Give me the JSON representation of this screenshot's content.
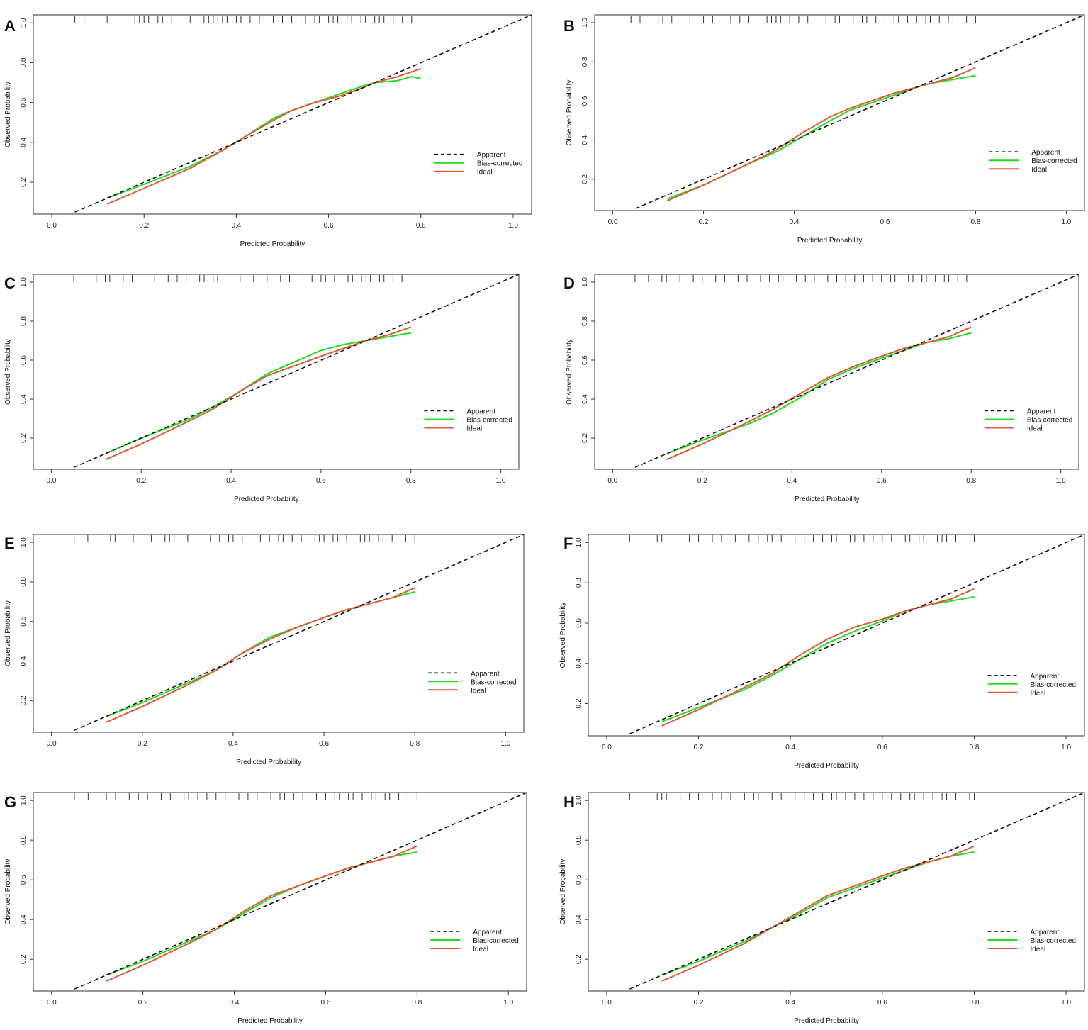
{
  "colors": {
    "apparent": "#111111",
    "bias_corrected": "#22dd22",
    "ideal": "#e05a3a",
    "frame": "#333333"
  },
  "chart_data": [
    {
      "panel": "A",
      "type": "line",
      "xlabel": "Predicted Probability",
      "ylabel": "Observed Probability",
      "xticks": [
        "0.0",
        "0.2",
        "0.4",
        "0.6",
        "0.8",
        "1.0"
      ],
      "yticks": [
        "0.2",
        "0.4",
        "0.6",
        "0.8",
        "1.0"
      ],
      "xlim": [
        -0.04,
        1.04
      ],
      "ylim": [
        0.04,
        1.04
      ],
      "legend": [
        "Apparent",
        "Bias-corrected",
        "Ideal"
      ],
      "rug": [
        0.05,
        0.07,
        0.12,
        0.18,
        0.19,
        0.2,
        0.21,
        0.23,
        0.24,
        0.26,
        0.3,
        0.33,
        0.34,
        0.35,
        0.36,
        0.37,
        0.38,
        0.4,
        0.41,
        0.43,
        0.45,
        0.46,
        0.48,
        0.5,
        0.52,
        0.54,
        0.55,
        0.57,
        0.58,
        0.6,
        0.61,
        0.62,
        0.64,
        0.65,
        0.67,
        0.68,
        0.7,
        0.71,
        0.72,
        0.74,
        0.76,
        0.78
      ],
      "series": [
        {
          "name": "Apparent",
          "x": [
            0.05,
            1.04
          ],
          "y": [
            0.05,
            1.04
          ]
        },
        {
          "name": "Bias-corrected",
          "x": [
            0.12,
            0.2,
            0.3,
            0.37,
            0.42,
            0.48,
            0.52,
            0.57,
            0.62,
            0.67,
            0.7,
            0.75,
            0.78,
            0.8
          ],
          "y": [
            0.12,
            0.19,
            0.28,
            0.36,
            0.43,
            0.52,
            0.56,
            0.6,
            0.64,
            0.68,
            0.7,
            0.71,
            0.73,
            0.72
          ]
        },
        {
          "name": "Ideal",
          "x": [
            0.12,
            0.2,
            0.3,
            0.37,
            0.42,
            0.48,
            0.52,
            0.57,
            0.62,
            0.67,
            0.7,
            0.75,
            0.8
          ],
          "y": [
            0.09,
            0.17,
            0.27,
            0.36,
            0.43,
            0.51,
            0.56,
            0.6,
            0.63,
            0.67,
            0.7,
            0.73,
            0.77
          ]
        }
      ]
    },
    {
      "panel": "B",
      "type": "line",
      "xlabel": "Predicted Probability",
      "ylabel": "Observed Probability",
      "xticks": [
        "0.0",
        "0.2",
        "0.4",
        "0.6",
        "0.8",
        "1.0"
      ],
      "yticks": [
        "0.2",
        "0.4",
        "0.6",
        "0.8",
        "1.0"
      ],
      "xlim": [
        -0.04,
        1.04
      ],
      "ylim": [
        0.04,
        1.04
      ],
      "legend": [
        "Apparent",
        "Bias-corrected",
        "Ideal"
      ],
      "rug": [
        0.04,
        0.06,
        0.1,
        0.11,
        0.13,
        0.17,
        0.2,
        0.22,
        0.26,
        0.28,
        0.3,
        0.34,
        0.35,
        0.36,
        0.37,
        0.39,
        0.41,
        0.43,
        0.45,
        0.47,
        0.49,
        0.5,
        0.53,
        0.55,
        0.56,
        0.58,
        0.6,
        0.62,
        0.63,
        0.65,
        0.67,
        0.69,
        0.7,
        0.72,
        0.74,
        0.75,
        0.78,
        0.8
      ],
      "series": [
        {
          "name": "Apparent",
          "x": [
            0.05,
            1.04
          ],
          "y": [
            0.05,
            1.04
          ]
        },
        {
          "name": "Bias-corrected",
          "x": [
            0.12,
            0.2,
            0.3,
            0.36,
            0.42,
            0.48,
            0.52,
            0.57,
            0.62,
            0.67,
            0.7,
            0.75,
            0.8
          ],
          "y": [
            0.1,
            0.17,
            0.28,
            0.34,
            0.42,
            0.5,
            0.55,
            0.59,
            0.63,
            0.67,
            0.69,
            0.71,
            0.73
          ]
        },
        {
          "name": "Ideal",
          "x": [
            0.12,
            0.2,
            0.3,
            0.36,
            0.42,
            0.48,
            0.52,
            0.57,
            0.62,
            0.67,
            0.7,
            0.75,
            0.8
          ],
          "y": [
            0.09,
            0.17,
            0.28,
            0.35,
            0.44,
            0.52,
            0.56,
            0.6,
            0.64,
            0.67,
            0.69,
            0.72,
            0.77
          ]
        }
      ]
    },
    {
      "panel": "C",
      "type": "line",
      "xlabel": "Predicted Probability",
      "ylabel": "Observed Probability",
      "xticks": [
        "0.0",
        "0.2",
        "0.4",
        "0.6",
        "0.8",
        "1.0"
      ],
      "yticks": [
        "0.2",
        "0.4",
        "0.6",
        "0.8",
        "1.0"
      ],
      "xlim": [
        -0.04,
        1.04
      ],
      "ylim": [
        0.04,
        1.04
      ],
      "legend": [
        "Apparent",
        "Bias-corrected",
        "Ideal"
      ],
      "rug": [
        0.05,
        0.1,
        0.12,
        0.13,
        0.16,
        0.18,
        0.23,
        0.26,
        0.28,
        0.3,
        0.33,
        0.34,
        0.36,
        0.37,
        0.42,
        0.45,
        0.48,
        0.5,
        0.51,
        0.53,
        0.56,
        0.58,
        0.6,
        0.61,
        0.63,
        0.66,
        0.67,
        0.69,
        0.7,
        0.71,
        0.73,
        0.74,
        0.76,
        0.78
      ],
      "series": [
        {
          "name": "Apparent",
          "x": [
            0.05,
            1.04
          ],
          "y": [
            0.05,
            1.04
          ]
        },
        {
          "name": "Bias-corrected",
          "x": [
            0.12,
            0.2,
            0.3,
            0.36,
            0.42,
            0.48,
            0.54,
            0.6,
            0.65,
            0.7,
            0.75,
            0.8
          ],
          "y": [
            0.12,
            0.2,
            0.29,
            0.36,
            0.44,
            0.53,
            0.59,
            0.65,
            0.68,
            0.7,
            0.72,
            0.74
          ]
        },
        {
          "name": "Ideal",
          "x": [
            0.12,
            0.2,
            0.3,
            0.36,
            0.42,
            0.48,
            0.54,
            0.6,
            0.65,
            0.7,
            0.75,
            0.8
          ],
          "y": [
            0.09,
            0.17,
            0.28,
            0.35,
            0.44,
            0.52,
            0.57,
            0.62,
            0.66,
            0.7,
            0.73,
            0.77
          ]
        }
      ]
    },
    {
      "panel": "D",
      "type": "line",
      "xlabel": "Predicted Probability",
      "ylabel": "Observed Probability",
      "xticks": [
        "0.0",
        "0.2",
        "0.4",
        "0.6",
        "0.8",
        "1.0"
      ],
      "yticks": [
        "0.2",
        "0.4",
        "0.6",
        "0.8",
        "1.0"
      ],
      "xlim": [
        -0.04,
        1.04
      ],
      "ylim": [
        0.04,
        1.04
      ],
      "legend": [
        "Apparent",
        "Bias-corrected",
        "Ideal"
      ],
      "rug": [
        0.05,
        0.08,
        0.11,
        0.12,
        0.15,
        0.18,
        0.2,
        0.23,
        0.25,
        0.28,
        0.3,
        0.33,
        0.35,
        0.37,
        0.38,
        0.41,
        0.43,
        0.45,
        0.48,
        0.5,
        0.52,
        0.54,
        0.56,
        0.58,
        0.6,
        0.62,
        0.63,
        0.66,
        0.67,
        0.69,
        0.7,
        0.72,
        0.74,
        0.75,
        0.77,
        0.79
      ],
      "series": [
        {
          "name": "Apparent",
          "x": [
            0.05,
            1.04
          ],
          "y": [
            0.05,
            1.04
          ]
        },
        {
          "name": "Bias-corrected",
          "x": [
            0.12,
            0.2,
            0.3,
            0.36,
            0.42,
            0.48,
            0.54,
            0.6,
            0.65,
            0.7,
            0.75,
            0.8
          ],
          "y": [
            0.12,
            0.19,
            0.27,
            0.33,
            0.41,
            0.5,
            0.56,
            0.61,
            0.65,
            0.69,
            0.71,
            0.74
          ]
        },
        {
          "name": "Ideal",
          "x": [
            0.12,
            0.2,
            0.3,
            0.36,
            0.42,
            0.48,
            0.54,
            0.6,
            0.65,
            0.7,
            0.75,
            0.8
          ],
          "y": [
            0.09,
            0.17,
            0.28,
            0.35,
            0.43,
            0.51,
            0.57,
            0.62,
            0.66,
            0.69,
            0.72,
            0.77
          ]
        }
      ]
    },
    {
      "panel": "E",
      "type": "line",
      "xlabel": "Predicted Probability",
      "ylabel": "Observed Probability",
      "xticks": [
        "0.0",
        "0.2",
        "0.4",
        "0.6",
        "0.8",
        "1.0"
      ],
      "yticks": [
        "0.2",
        "0.4",
        "0.6",
        "0.8",
        "1.0"
      ],
      "xlim": [
        -0.04,
        1.04
      ],
      "ylim": [
        0.04,
        1.04
      ],
      "legend": [
        "Apparent",
        "Bias-corrected",
        "Ideal"
      ],
      "rug": [
        0.05,
        0.08,
        0.12,
        0.13,
        0.14,
        0.18,
        0.22,
        0.25,
        0.26,
        0.27,
        0.3,
        0.34,
        0.35,
        0.37,
        0.39,
        0.4,
        0.42,
        0.46,
        0.48,
        0.5,
        0.51,
        0.53,
        0.55,
        0.58,
        0.59,
        0.6,
        0.62,
        0.63,
        0.65,
        0.68,
        0.69,
        0.7,
        0.72,
        0.73,
        0.75,
        0.78,
        0.8
      ],
      "series": [
        {
          "name": "Apparent",
          "x": [
            0.05,
            1.04
          ],
          "y": [
            0.05,
            1.04
          ]
        },
        {
          "name": "Bias-corrected",
          "x": [
            0.12,
            0.2,
            0.3,
            0.36,
            0.42,
            0.48,
            0.54,
            0.6,
            0.65,
            0.7,
            0.75,
            0.8
          ],
          "y": [
            0.12,
            0.19,
            0.29,
            0.35,
            0.44,
            0.52,
            0.57,
            0.62,
            0.66,
            0.69,
            0.72,
            0.75
          ]
        },
        {
          "name": "Ideal",
          "x": [
            0.12,
            0.2,
            0.3,
            0.36,
            0.42,
            0.48,
            0.54,
            0.6,
            0.65,
            0.7,
            0.75,
            0.8
          ],
          "y": [
            0.09,
            0.17,
            0.28,
            0.35,
            0.44,
            0.51,
            0.57,
            0.62,
            0.66,
            0.69,
            0.72,
            0.77
          ]
        }
      ]
    },
    {
      "panel": "F",
      "type": "line",
      "xlabel": "Predicted Probability",
      "ylabel": "Observed Probability",
      "xticks": [
        "0.0",
        "0.2",
        "0.4",
        "0.6",
        "0.8",
        "1.0"
      ],
      "yticks": [
        "0.2",
        "0.4",
        "0.6",
        "0.8",
        "1.0"
      ],
      "xlim": [
        -0.04,
        1.04
      ],
      "ylim": [
        0.04,
        1.04
      ],
      "legend": [
        "Apparent",
        "Bias-corrected",
        "Ideal"
      ],
      "rug": [
        0.05,
        0.11,
        0.12,
        0.18,
        0.2,
        0.23,
        0.24,
        0.25,
        0.28,
        0.31,
        0.33,
        0.35,
        0.36,
        0.38,
        0.41,
        0.43,
        0.45,
        0.47,
        0.49,
        0.5,
        0.53,
        0.54,
        0.56,
        0.58,
        0.6,
        0.62,
        0.65,
        0.66,
        0.68,
        0.69,
        0.72,
        0.73,
        0.74,
        0.76,
        0.78,
        0.8
      ],
      "series": [
        {
          "name": "Apparent",
          "x": [
            0.05,
            1.04
          ],
          "y": [
            0.05,
            1.04
          ]
        },
        {
          "name": "Bias-corrected",
          "x": [
            0.12,
            0.2,
            0.3,
            0.36,
            0.42,
            0.48,
            0.54,
            0.6,
            0.65,
            0.7,
            0.75,
            0.8
          ],
          "y": [
            0.11,
            0.18,
            0.27,
            0.34,
            0.42,
            0.5,
            0.56,
            0.61,
            0.66,
            0.69,
            0.71,
            0.73
          ]
        },
        {
          "name": "Ideal",
          "x": [
            0.12,
            0.2,
            0.3,
            0.36,
            0.42,
            0.48,
            0.54,
            0.6,
            0.65,
            0.7,
            0.75,
            0.8
          ],
          "y": [
            0.09,
            0.17,
            0.28,
            0.35,
            0.44,
            0.52,
            0.58,
            0.62,
            0.66,
            0.69,
            0.72,
            0.77
          ]
        }
      ]
    },
    {
      "panel": "G",
      "type": "line",
      "xlabel": "Predicted Probability",
      "ylabel": "Observed Probability",
      "xticks": [
        "0.0",
        "0.2",
        "0.4",
        "0.6",
        "0.8",
        "1.0"
      ],
      "yticks": [
        "0.2",
        "0.4",
        "0.6",
        "0.8",
        "1.0"
      ],
      "xlim": [
        -0.04,
        1.04
      ],
      "ylim": [
        0.04,
        1.04
      ],
      "legend": [
        "Apparent",
        "Bias-corrected",
        "Ideal"
      ],
      "rug": [
        0.05,
        0.08,
        0.12,
        0.14,
        0.17,
        0.19,
        0.21,
        0.24,
        0.26,
        0.29,
        0.3,
        0.32,
        0.34,
        0.36,
        0.38,
        0.41,
        0.43,
        0.45,
        0.48,
        0.5,
        0.51,
        0.53,
        0.55,
        0.58,
        0.6,
        0.62,
        0.63,
        0.65,
        0.66,
        0.68,
        0.7,
        0.71,
        0.73,
        0.74,
        0.76,
        0.78,
        0.8
      ],
      "series": [
        {
          "name": "Apparent",
          "x": [
            0.05,
            1.04
          ],
          "y": [
            0.05,
            1.04
          ]
        },
        {
          "name": "Bias-corrected",
          "x": [
            0.12,
            0.2,
            0.3,
            0.36,
            0.42,
            0.48,
            0.54,
            0.6,
            0.65,
            0.7,
            0.75,
            0.8
          ],
          "y": [
            0.12,
            0.19,
            0.29,
            0.35,
            0.43,
            0.51,
            0.57,
            0.62,
            0.66,
            0.69,
            0.72,
            0.74
          ]
        },
        {
          "name": "Ideal",
          "x": [
            0.12,
            0.2,
            0.3,
            0.36,
            0.42,
            0.48,
            0.54,
            0.6,
            0.65,
            0.7,
            0.75,
            0.8
          ],
          "y": [
            0.09,
            0.17,
            0.28,
            0.35,
            0.44,
            0.52,
            0.57,
            0.62,
            0.66,
            0.69,
            0.72,
            0.77
          ]
        }
      ]
    },
    {
      "panel": "H",
      "type": "line",
      "xlabel": "Predicted Probability",
      "ylabel": "Observed Probability",
      "xticks": [
        "0.0",
        "0.2",
        "0.4",
        "0.6",
        "0.8",
        "1.0"
      ],
      "yticks": [
        "0.2",
        "0.4",
        "0.6",
        "0.8",
        "1.0"
      ],
      "xlim": [
        -0.04,
        1.04
      ],
      "ylim": [
        0.04,
        1.04
      ],
      "legend": [
        "Apparent",
        "Bias-corrected",
        "Ideal"
      ],
      "rug": [
        0.05,
        0.11,
        0.12,
        0.13,
        0.16,
        0.18,
        0.2,
        0.23,
        0.25,
        0.27,
        0.3,
        0.32,
        0.33,
        0.36,
        0.38,
        0.41,
        0.43,
        0.45,
        0.47,
        0.49,
        0.5,
        0.52,
        0.54,
        0.56,
        0.58,
        0.6,
        0.62,
        0.64,
        0.66,
        0.67,
        0.69,
        0.71,
        0.73,
        0.74,
        0.76,
        0.79,
        0.8
      ],
      "series": [
        {
          "name": "Apparent",
          "x": [
            0.05,
            1.04
          ],
          "y": [
            0.05,
            1.04
          ]
        },
        {
          "name": "Bias-corrected",
          "x": [
            0.12,
            0.2,
            0.3,
            0.36,
            0.42,
            0.48,
            0.54,
            0.6,
            0.65,
            0.7,
            0.75,
            0.8
          ],
          "y": [
            0.12,
            0.19,
            0.29,
            0.36,
            0.43,
            0.51,
            0.56,
            0.61,
            0.65,
            0.69,
            0.72,
            0.74
          ]
        },
        {
          "name": "Ideal",
          "x": [
            0.12,
            0.2,
            0.3,
            0.36,
            0.42,
            0.48,
            0.54,
            0.6,
            0.65,
            0.7,
            0.75,
            0.8
          ],
          "y": [
            0.09,
            0.17,
            0.28,
            0.36,
            0.44,
            0.52,
            0.57,
            0.62,
            0.66,
            0.69,
            0.72,
            0.77
          ]
        }
      ]
    }
  ]
}
